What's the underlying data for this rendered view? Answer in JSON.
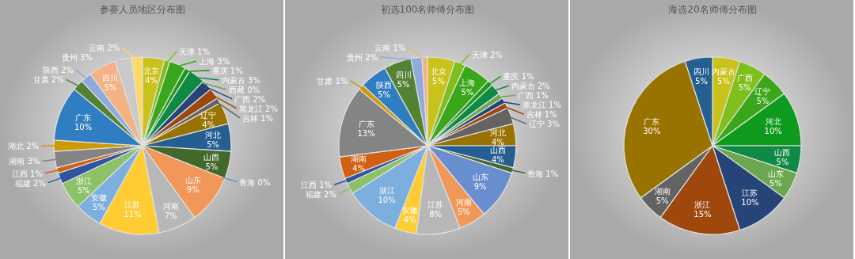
{
  "chart_data": [
    {
      "type": "pie",
      "title": "参赛人员地区分布图",
      "categories": [
        "北京",
        "天津",
        "上海",
        "重庆",
        "内蒙古",
        "西藏",
        "广西",
        "黑龙江",
        "吉林",
        "辽宁",
        "河北",
        "山西",
        "青海",
        "山东",
        "河南",
        "江苏",
        "安徽",
        "浙江",
        "福建",
        "江西",
        "湖南",
        "湖北",
        "广东",
        "甘肃",
        "陕西",
        "四川",
        "贵州",
        "云南"
      ],
      "values": [
        4,
        1,
        3,
        1,
        3,
        0,
        2,
        2,
        1,
        4,
        5,
        5,
        0,
        9,
        7,
        11,
        5,
        5,
        2,
        1,
        3,
        2,
        10,
        2,
        2,
        5,
        3,
        2
      ],
      "value_labels": [
        "4%",
        "1%",
        "3%",
        "1%",
        "3%",
        "0%",
        "2%",
        "2%",
        "1%",
        "4%",
        "5%",
        "5%",
        "0%",
        "9%",
        "7%",
        "11%",
        "5%",
        "5%",
        "2%",
        "1%",
        "3%",
        "2%",
        "10%",
        "2%",
        "2%",
        "5%",
        "3%",
        "2%"
      ],
      "colors": [
        "#c9c21a",
        "#7fbf1c",
        "#3aa619",
        "#1a9a1c",
        "#0e8a45",
        "#6aa84f",
        "#264478",
        "#9e480e",
        "#636363",
        "#997300",
        "#255e91",
        "#43682b",
        "#698ed0",
        "#f1975a",
        "#b7b7b7",
        "#ffcd33",
        "#7cafdd",
        "#8cc168",
        "#2e559f",
        "#d26012",
        "#848484",
        "#cc9a06",
        "#2f7ec2",
        "#548235",
        "#8faadc",
        "#f4b183",
        "#c9c9c9",
        "#ffd966"
      ]
    },
    {
      "type": "pie",
      "title": "初选100名师傅分布图",
      "categories": [
        "北京",
        "天津",
        "上海",
        "重庆",
        "内蒙古",
        "广西",
        "黑龙江",
        "吉林",
        "辽宁",
        "河北",
        "山西",
        "青海",
        "山东",
        "河南",
        "江苏",
        "安徽",
        "浙江",
        "福建",
        "江西",
        "湖南",
        "广东",
        "甘肃",
        "陕西",
        "四川",
        "贵州",
        "云南"
      ],
      "values": [
        5,
        2,
        5,
        1,
        2,
        1,
        1,
        1,
        3,
        4,
        4,
        1,
        9,
        5,
        8,
        4,
        10,
        2,
        1,
        4,
        13,
        1,
        5,
        5,
        2,
        1
      ],
      "value_labels": [
        "5%",
        "2%",
        "5%",
        "1%",
        "2%",
        "1%",
        "1%",
        "1%",
        "3%",
        "4%",
        "4%",
        "1%",
        "9%",
        "5%",
        "8%",
        "4%",
        "10%",
        "2%",
        "1%",
        "4%",
        "13%",
        "1%",
        "5%",
        "5%",
        "2%",
        "1%"
      ],
      "colors": [
        "#c9c21a",
        "#7fbf1c",
        "#3aa619",
        "#1a9a1c",
        "#0e8a45",
        "#6aa84f",
        "#264478",
        "#9e480e",
        "#636363",
        "#997300",
        "#255e91",
        "#43682b",
        "#698ed0",
        "#f1975a",
        "#b7b7b7",
        "#ffcd33",
        "#7cafdd",
        "#8cc168",
        "#2e559f",
        "#d26012",
        "#848484",
        "#cc9a06",
        "#2f7ec2",
        "#548235",
        "#8faadc",
        "#f4b183"
      ]
    },
    {
      "type": "pie",
      "title": "海选20名师傅分布图",
      "categories": [
        "内蒙古",
        "广西",
        "辽宁",
        "河北",
        "山西",
        "山东",
        "江苏",
        "浙江",
        "湖南",
        "广东",
        "四川"
      ],
      "values": [
        5,
        5,
        5,
        10,
        5,
        5,
        10,
        15,
        5,
        30,
        5
      ],
      "value_labels": [
        "5%",
        "5%",
        "5%",
        "10%",
        "5%",
        "5%",
        "10%",
        "15%",
        "5%",
        "30%",
        "5%"
      ],
      "colors": [
        "#c9c21a",
        "#7fbf1c",
        "#3aa619",
        "#0e9a1c",
        "#0e8a45",
        "#6aa84f",
        "#264478",
        "#9e480e",
        "#636363",
        "#997300",
        "#255e91"
      ]
    }
  ]
}
